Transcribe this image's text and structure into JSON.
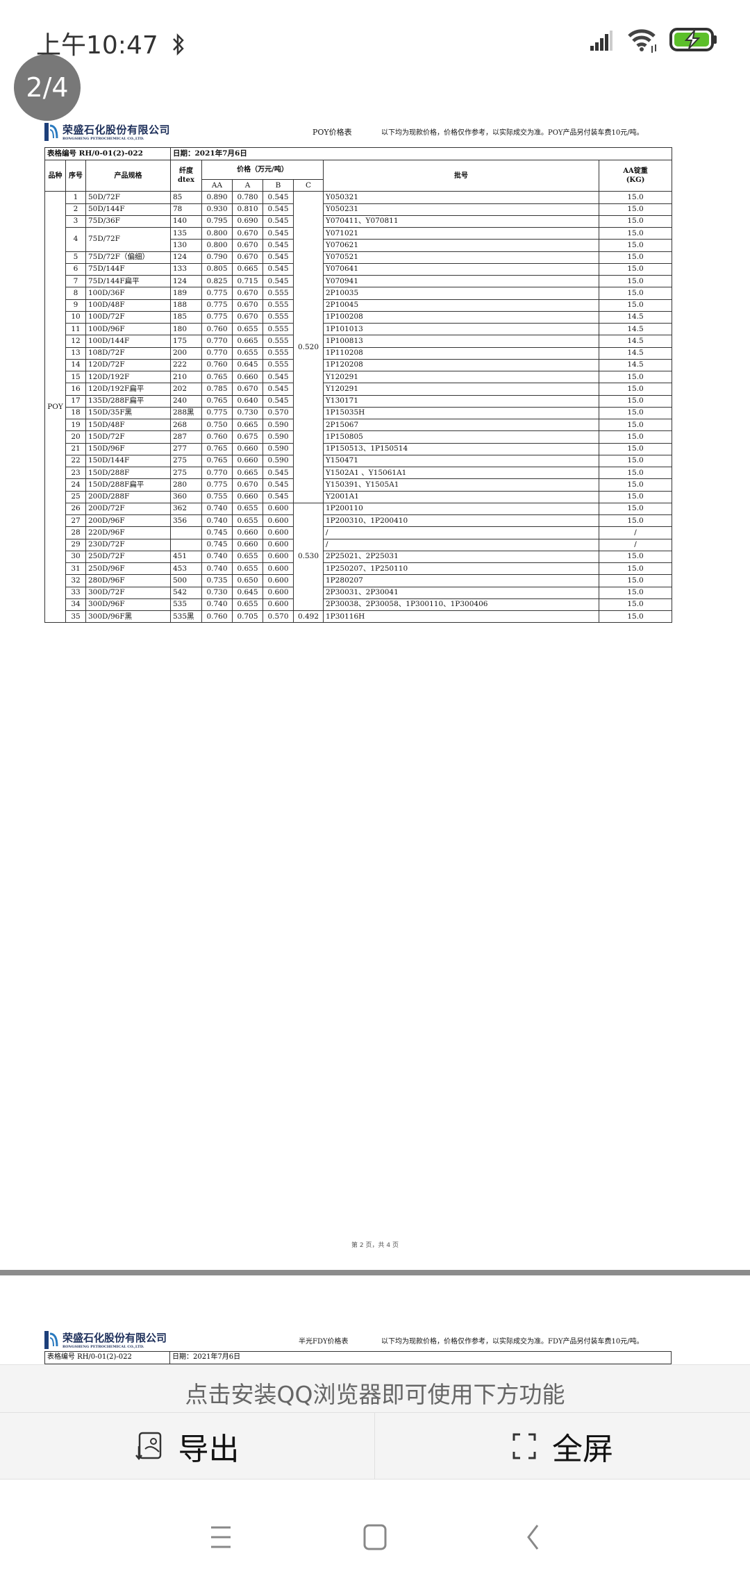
{
  "status_bar": {
    "time": "上午10:47",
    "icons": [
      "bluetooth-icon",
      "signal-icon",
      "wifi-icon",
      "battery-charging-icon"
    ],
    "battery_color": "#5cbf2a"
  },
  "viewer": {
    "page_indicator": "2/4",
    "page_footer": "第 2 页，共 4 页"
  },
  "page2": {
    "company_cn": "荣盛石化股份有限公司",
    "company_en": "RONGSHENG PETROCHEMICAL CO.,LTD.",
    "title": "POY价格表",
    "note": "以下均为现款价格，价格仅作参考，以实际成交为准。POY产品另付装车费10元/吨。",
    "form_no": "表格编号 RH/0-01(2)-022",
    "date": "日期：2021年7月6日",
    "headers": {
      "variety": "品种",
      "seq": "序号",
      "spec": "产品规格",
      "dtex": "纤度\ndtex",
      "price": "价格（万元/吨）",
      "aa": "AA",
      "a": "A",
      "b": "B",
      "c": "C",
      "batch": "批号",
      "weight": "AA锭重\n(KG)"
    },
    "variety": "POY",
    "c_prices": [
      {
        "price": "0.520",
        "from": 1,
        "to": 25
      },
      {
        "price": "0.530",
        "from": 26,
        "to": 34
      },
      {
        "price": "0.492",
        "from": 35,
        "to": 35
      }
    ],
    "rows": [
      {
        "seq": "1",
        "spec": "50D/72F",
        "lots": [
          {
            "dtex": "85",
            "aa": "0.890",
            "a": "0.780",
            "b": "0.545",
            "batch": "Y050321",
            "weight": "15.0"
          }
        ]
      },
      {
        "seq": "2",
        "spec": "50D/144F",
        "lots": [
          {
            "dtex": "78",
            "aa": "0.930",
            "a": "0.810",
            "b": "0.545",
            "batch": "Y050231",
            "weight": "15.0"
          }
        ]
      },
      {
        "seq": "3",
        "spec": "75D/36F",
        "lots": [
          {
            "dtex": "140",
            "aa": "0.795",
            "a": "0.690",
            "b": "0.545",
            "batch": "Y070411、Y070811",
            "weight": "15.0"
          }
        ]
      },
      {
        "seq": "4",
        "spec": "75D/72F",
        "lots": [
          {
            "dtex": "135",
            "aa": "0.800",
            "a": "0.670",
            "b": "0.545",
            "batch": "Y071021",
            "weight": "15.0"
          },
          {
            "dtex": "130",
            "aa": "0.800",
            "a": "0.670",
            "b": "0.545",
            "batch": "Y070621",
            "weight": "15.0"
          }
        ]
      },
      {
        "seq": "5",
        "spec": "75D/72F（偏细）",
        "lots": [
          {
            "dtex": "124",
            "aa": "0.790",
            "a": "0.670",
            "b": "0.545",
            "batch": "Y070521",
            "weight": "15.0"
          }
        ]
      },
      {
        "seq": "6",
        "spec": "75D/144F",
        "lots": [
          {
            "dtex": "133",
            "aa": "0.805",
            "a": "0.665",
            "b": "0.545",
            "batch": "Y070641",
            "weight": "15.0"
          }
        ]
      },
      {
        "seq": "7",
        "spec": "75D/144F扁平",
        "lots": [
          {
            "dtex": "124",
            "aa": "0.825",
            "a": "0.715",
            "b": "0.545",
            "batch": "Y070941",
            "weight": "15.0"
          }
        ]
      },
      {
        "seq": "8",
        "spec": "100D/36F",
        "lots": [
          {
            "dtex": "189",
            "aa": "0.775",
            "a": "0.670",
            "b": "0.555",
            "batch": "2P10035",
            "weight": "15.0"
          }
        ]
      },
      {
        "seq": "9",
        "spec": "100D/48F",
        "lots": [
          {
            "dtex": "188",
            "aa": "0.775",
            "a": "0.670",
            "b": "0.555",
            "batch": "2P10045",
            "weight": "15.0"
          }
        ]
      },
      {
        "seq": "10",
        "spec": "100D/72F",
        "lots": [
          {
            "dtex": "185",
            "aa": "0.775",
            "a": "0.670",
            "b": "0.555",
            "batch": "1P100208",
            "weight": "14.5"
          }
        ]
      },
      {
        "seq": "11",
        "spec": "100D/96F",
        "lots": [
          {
            "dtex": "180",
            "aa": "0.760",
            "a": "0.655",
            "b": "0.555",
            "batch": "1P101013",
            "weight": "14.5"
          }
        ]
      },
      {
        "seq": "12",
        "spec": "100D/144F",
        "lots": [
          {
            "dtex": "175",
            "aa": "0.770",
            "a": "0.665",
            "b": "0.555",
            "batch": "1P100813",
            "weight": "14.5"
          }
        ]
      },
      {
        "seq": "13",
        "spec": "108D/72F",
        "lots": [
          {
            "dtex": "200",
            "aa": "0.770",
            "a": "0.655",
            "b": "0.555",
            "batch": "1P110208",
            "weight": "14.5"
          }
        ]
      },
      {
        "seq": "14",
        "spec": "120D/72F",
        "lots": [
          {
            "dtex": "222",
            "aa": "0.760",
            "a": "0.645",
            "b": "0.555",
            "batch": "1P120208",
            "weight": "14.5"
          }
        ]
      },
      {
        "seq": "15",
        "spec": "120D/192F",
        "lots": [
          {
            "dtex": "210",
            "aa": "0.765",
            "a": "0.660",
            "b": "0.545",
            "batch": "Y120291",
            "weight": "15.0"
          }
        ]
      },
      {
        "seq": "16",
        "spec": "120D/192F扁平",
        "lots": [
          {
            "dtex": "202",
            "aa": "0.785",
            "a": "0.670",
            "b": "0.545",
            "batch": "Y120291",
            "weight": "15.0"
          }
        ]
      },
      {
        "seq": "17",
        "spec": "135D/288F扁平",
        "lots": [
          {
            "dtex": "240",
            "aa": "0.765",
            "a": "0.640",
            "b": "0.545",
            "batch": "Y130171",
            "weight": "15.0"
          }
        ]
      },
      {
        "seq": "18",
        "spec": "150D/35F黑",
        "lots": [
          {
            "dtex": "288黑",
            "aa": "0.775",
            "a": "0.730",
            "b": "0.570",
            "batch": "1P15035H",
            "weight": "15.0"
          }
        ]
      },
      {
        "seq": "19",
        "spec": "150D/48F",
        "lots": [
          {
            "dtex": "268",
            "aa": "0.750",
            "a": "0.665",
            "b": "0.590",
            "batch": "2P15067",
            "weight": "15.0"
          }
        ]
      },
      {
        "seq": "20",
        "spec": "150D/72F",
        "lots": [
          {
            "dtex": "287",
            "aa": "0.760",
            "a": "0.675",
            "b": "0.590",
            "batch": "1P150805",
            "weight": "15.0"
          }
        ]
      },
      {
        "seq": "21",
        "spec": "150D/96F",
        "lots": [
          {
            "dtex": "277",
            "aa": "0.765",
            "a": "0.660",
            "b": "0.590",
            "batch": "1P150513、1P150514",
            "weight": "15.0"
          }
        ]
      },
      {
        "seq": "22",
        "spec": "150D/144F",
        "lots": [
          {
            "dtex": "275",
            "aa": "0.765",
            "a": "0.660",
            "b": "0.590",
            "batch": "Y150471",
            "weight": "15.0"
          }
        ]
      },
      {
        "seq": "23",
        "spec": "150D/288F",
        "lots": [
          {
            "dtex": "275",
            "aa": "0.770",
            "a": "0.665",
            "b": "0.545",
            "batch": "Y1502A1 、Y15061A1",
            "weight": "15.0"
          }
        ]
      },
      {
        "seq": "24",
        "spec": "150D/288F扁平",
        "lots": [
          {
            "dtex": "280",
            "aa": "0.775",
            "a": "0.670",
            "b": "0.545",
            "batch": "Y150391、Y1505A1",
            "weight": "15.0"
          }
        ]
      },
      {
        "seq": "25",
        "spec": "200D/288F",
        "lots": [
          {
            "dtex": "360",
            "aa": "0.755",
            "a": "0.660",
            "b": "0.545",
            "batch": "Y2001A1",
            "weight": "15.0"
          }
        ]
      },
      {
        "seq": "26",
        "spec": "200D/72F",
        "lots": [
          {
            "dtex": "362",
            "aa": "0.740",
            "a": "0.655",
            "b": "0.600",
            "batch": "1P200110",
            "weight": "15.0"
          }
        ]
      },
      {
        "seq": "27",
        "spec": "200D/96F",
        "lots": [
          {
            "dtex": "356",
            "aa": "0.740",
            "a": "0.655",
            "b": "0.600",
            "batch": "1P200310、1P200410",
            "weight": "15.0"
          }
        ]
      },
      {
        "seq": "28",
        "spec": "220D/96F",
        "lots": [
          {
            "dtex": "",
            "aa": "0.745",
            "a": "0.660",
            "b": "0.600",
            "batch": "/",
            "weight": "/"
          }
        ]
      },
      {
        "seq": "29",
        "spec": "230D/72F",
        "lots": [
          {
            "dtex": "",
            "aa": "0.745",
            "a": "0.660",
            "b": "0.600",
            "batch": "/",
            "weight": "/"
          }
        ]
      },
      {
        "seq": "30",
        "spec": "250D/72F",
        "lots": [
          {
            "dtex": "451",
            "aa": "0.740",
            "a": "0.655",
            "b": "0.600",
            "batch": "2P25021、2P25031",
            "weight": "15.0"
          }
        ]
      },
      {
        "seq": "31",
        "spec": "250D/96F",
        "lots": [
          {
            "dtex": "453",
            "aa": "0.740",
            "a": "0.655",
            "b": "0.600",
            "batch": "1P250207、1P250110",
            "weight": "15.0"
          }
        ]
      },
      {
        "seq": "32",
        "spec": "280D/96F",
        "lots": [
          {
            "dtex": "500",
            "aa": "0.735",
            "a": "0.650",
            "b": "0.600",
            "batch": "1P280207",
            "weight": "15.0"
          }
        ]
      },
      {
        "seq": "33",
        "spec": "300D/72F",
        "lots": [
          {
            "dtex": "542",
            "aa": "0.730",
            "a": "0.645",
            "b": "0.600",
            "batch": "2P30031、2P30041",
            "weight": "15.0"
          }
        ]
      },
      {
        "seq": "34",
        "spec": "300D/96F",
        "lots": [
          {
            "dtex": "535",
            "aa": "0.740",
            "a": "0.655",
            "b": "0.600",
            "batch": "2P30038、2P30058、1P300110、1P300406",
            "weight": "15.0"
          }
        ]
      },
      {
        "seq": "35",
        "spec": "300D/96F黑",
        "lots": [
          {
            "dtex": "535黑",
            "aa": "0.760",
            "a": "0.705",
            "b": "0.570",
            "batch": "1P30116H",
            "weight": "15.0"
          }
        ]
      }
    ]
  },
  "page3": {
    "company_cn": "荣盛石化股份有限公司",
    "company_en": "RONGSHENG PETROCHEMICAL CO.,LTD.",
    "title": "半光FDY价格表",
    "note": "以下均为现款价格，价格仅作参考，以实际成交为准。FDY产品另付装车费10元/吨。",
    "form_no": "表格编号 RH/0-01(2)-022",
    "date": "日期：2021年7月6日"
  },
  "overlay": {
    "message": "点击安装QQ浏览器即可使用下方功能",
    "export_label": "导出",
    "fullscreen_label": "全屏"
  },
  "nav": {
    "icons": [
      "menu-icon",
      "home-icon",
      "back-icon"
    ]
  }
}
